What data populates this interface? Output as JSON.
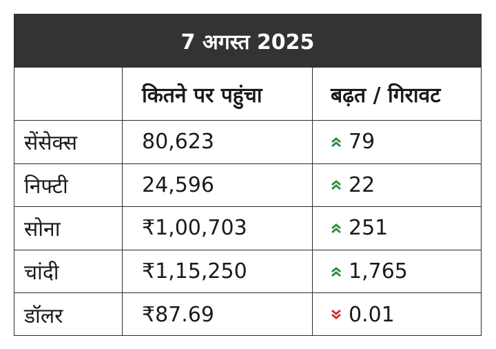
{
  "banner": {
    "date": "7 अगस्त 2025"
  },
  "header": {
    "col1": "",
    "col2": "कितने पर पहुंचा",
    "col3": "बढ़त / गिरावट"
  },
  "colors": {
    "up": "#2e8b3e",
    "down": "#d32f2f",
    "banner_bg": "#333333"
  },
  "rows": [
    {
      "name": "सेंसेक्स",
      "value": "80,623",
      "change": "79",
      "direction": "up",
      "icon": "double-chevron-up-icon"
    },
    {
      "name": "निफ्टी",
      "value": "24,596",
      "change": "22",
      "direction": "up",
      "icon": "double-chevron-up-icon"
    },
    {
      "name": "सोना",
      "value": "₹1,00,703",
      "change": "251",
      "direction": "up",
      "icon": "double-chevron-up-icon"
    },
    {
      "name": "चांदी",
      "value": "₹1,15,250",
      "change": "1,765",
      "direction": "up",
      "icon": "double-chevron-up-icon"
    },
    {
      "name": "डॉलर",
      "value": "₹87.69",
      "change": "0.01",
      "direction": "down",
      "icon": "double-chevron-down-icon"
    }
  ]
}
